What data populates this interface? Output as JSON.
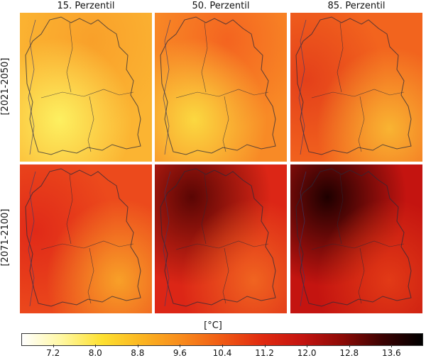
{
  "columns": [
    "15. Perzentil",
    "50. Perzentil",
    "85. Perzentil"
  ],
  "rows": [
    "[2021-2050]",
    "[2071-2100]"
  ],
  "colorbar": {
    "title": "[°C]",
    "ticks": [
      "7.2",
      "8.0",
      "8.8",
      "9.6",
      "10.4",
      "11.2",
      "12.0",
      "12.8",
      "13.6"
    ],
    "min": 6.6,
    "max": 14.2,
    "tick_values": [
      7.2,
      8.0,
      8.8,
      9.6,
      10.4,
      11.2,
      12.0,
      12.8,
      13.6
    ],
    "colors": [
      "#ffffff",
      "#fff7a0",
      "#fde030",
      "#fbb420",
      "#f88a1c",
      "#f05a14",
      "#e02a10",
      "#c41410",
      "#8c0a06",
      "#3c0202",
      "#000000"
    ]
  },
  "panels": [
    {
      "row": 0,
      "col": 0,
      "base_color": "#fbb432",
      "hot_color": "#f9a02a",
      "cool_color": "#fdf060",
      "hot_region": "north",
      "cool_region": "southwest"
    },
    {
      "row": 0,
      "col": 1,
      "base_color": "#f88a26",
      "hot_color": "#f46420",
      "cool_color": "#fbd840",
      "hot_region": "north",
      "cool_region": "southwest"
    },
    {
      "row": 0,
      "col": 2,
      "base_color": "#f2641e",
      "hot_color": "#e4401a",
      "cool_color": "#f9b432",
      "hot_region": "west",
      "cool_region": "southeast"
    },
    {
      "row": 1,
      "col": 0,
      "base_color": "#ec4a1c",
      "hot_color": "#e02a18",
      "cool_color": "#f8a028",
      "hot_region": "west",
      "cool_region": "southeast"
    },
    {
      "row": 1,
      "col": 1,
      "base_color": "#dc2616",
      "hot_color": "#5a0604",
      "cool_color": "#f06420",
      "hot_region": "northwest",
      "cool_region": "southeast"
    },
    {
      "row": 1,
      "col": 2,
      "base_color": "#c41410",
      "hot_color": "#1e0000",
      "cool_color": "#e23a16",
      "hot_region": "northwest",
      "cool_region": "southeast"
    }
  ]
}
